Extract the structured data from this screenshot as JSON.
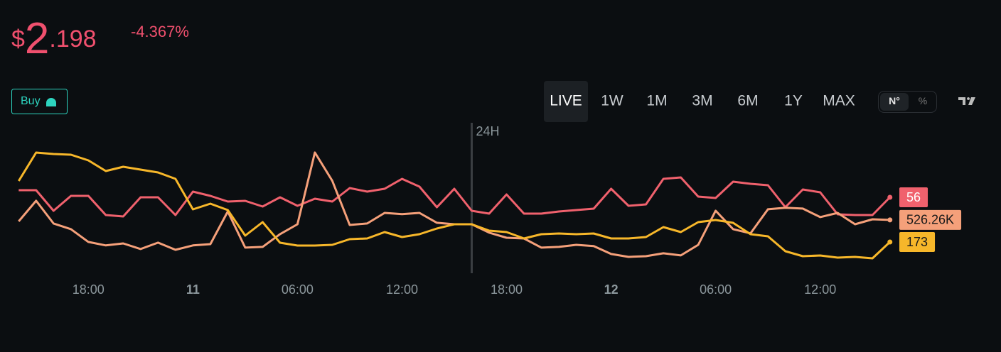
{
  "header": {
    "price": {
      "symbol": "$",
      "whole": "2",
      "fraction": ".198"
    },
    "change": "-4.367%"
  },
  "buy_button": "Buy",
  "range_buttons": [
    {
      "label": "LIVE",
      "active": true
    },
    {
      "label": "1W"
    },
    {
      "label": "1M"
    },
    {
      "label": "3M"
    },
    {
      "label": "6M"
    },
    {
      "label": "1Y"
    },
    {
      "label": "MAX"
    }
  ],
  "mode_toggle": [
    {
      "label": "N°",
      "active": true
    },
    {
      "label": "%"
    }
  ],
  "chart_data": {
    "type": "line",
    "x": [
      -10,
      -9,
      -8,
      -7,
      -6,
      -5,
      -4,
      -3,
      -2,
      -1,
      0,
      1,
      2,
      3,
      4,
      5,
      6,
      7,
      8,
      9,
      10,
      11,
      12,
      13,
      14,
      15,
      16,
      17,
      18,
      19,
      20,
      21,
      22,
      23,
      24,
      25,
      26,
      27,
      28,
      29,
      30,
      31,
      32,
      33,
      34,
      35,
      36,
      37,
      38,
      39,
      40
    ],
    "xlim": [
      -10.5,
      40.5
    ],
    "xticks": [
      {
        "value": -6,
        "label": "18:00"
      },
      {
        "value": 0,
        "label": "11"
      },
      {
        "value": 6,
        "label": "06:00"
      },
      {
        "value": 12,
        "label": "12:00"
      },
      {
        "value": 18,
        "label": "18:00"
      },
      {
        "value": 24,
        "label": "12"
      },
      {
        "value": 30,
        "label": "06:00"
      },
      {
        "value": 36,
        "label": "12:00"
      }
    ],
    "marker": {
      "x": 16,
      "label": "24H"
    },
    "series": [
      {
        "color": "#f0616d",
        "ylim": [
          35.6,
          71.6
        ],
        "values": [
          58,
          58,
          52.2,
          56.4,
          56.4,
          51,
          50.6,
          56,
          56,
          51,
          57.6,
          56.4,
          54.8,
          55,
          53.4,
          56,
          53.6,
          55.6,
          54.8,
          58.6,
          57.6,
          58.4,
          61.2,
          59,
          53.2,
          58.4,
          52.2,
          51.4,
          56.8,
          51.4,
          51.4,
          52,
          52.4,
          52.8,
          58.4,
          53.6,
          54,
          61.2,
          61.6,
          56.2,
          55.8,
          60.4,
          59.8,
          59.4,
          53.2,
          58.2,
          57.4,
          51.2,
          51,
          51,
          56
        ]
      },
      {
        "color": "#f5a07a",
        "ylim": [
          499000,
          569000
        ],
        "values": [
          525480,
          536760,
          524310,
          521200,
          514200,
          512300,
          513400,
          510300,
          513800,
          509900,
          512300,
          513000,
          530900,
          511100,
          511500,
          518500,
          523900,
          563200,
          547700,
          523500,
          524300,
          530100,
          529400,
          530100,
          524700,
          523900,
          523900,
          519300,
          516500,
          516100,
          511100,
          511500,
          512600,
          511900,
          507600,
          506000,
          506400,
          508000,
          506800,
          512600,
          531300,
          521200,
          518900,
          532100,
          532900,
          532500,
          527800,
          530100,
          523900,
          526600,
          526260
        ],
        "value_labels": [
          null,
          null,
          null,
          null,
          null,
          null,
          null,
          null,
          null,
          null,
          null,
          null,
          null,
          null,
          null,
          null,
          null,
          null,
          null,
          null,
          null,
          null,
          null,
          null,
          null,
          null,
          null,
          null,
          null,
          null,
          null,
          null,
          null,
          null,
          null,
          null,
          null,
          null,
          null,
          null,
          null,
          null,
          null,
          null,
          null,
          null,
          null,
          null,
          null,
          null,
          "526.26K"
        ]
      },
      {
        "color": "#f7b72a",
        "ylim": [
          165.2,
          201.2
        ],
        "values": [
          190.2,
          198.2,
          197.8,
          197.6,
          196,
          193,
          194.2,
          193.4,
          192.6,
          190.8,
          182.2,
          183.8,
          182,
          174.8,
          178.6,
          172.8,
          172,
          172,
          172.2,
          173.8,
          174,
          175.8,
          174.4,
          175.2,
          176.8,
          178,
          178,
          176.2,
          175.8,
          174,
          175.2,
          175.4,
          175.2,
          175.4,
          174,
          174,
          174.4,
          177.2,
          175.8,
          178.6,
          179.2,
          178.4,
          175.2,
          174.6,
          170.4,
          169,
          169.2,
          168.6,
          168.8,
          168.4,
          173
        ]
      }
    ]
  }
}
